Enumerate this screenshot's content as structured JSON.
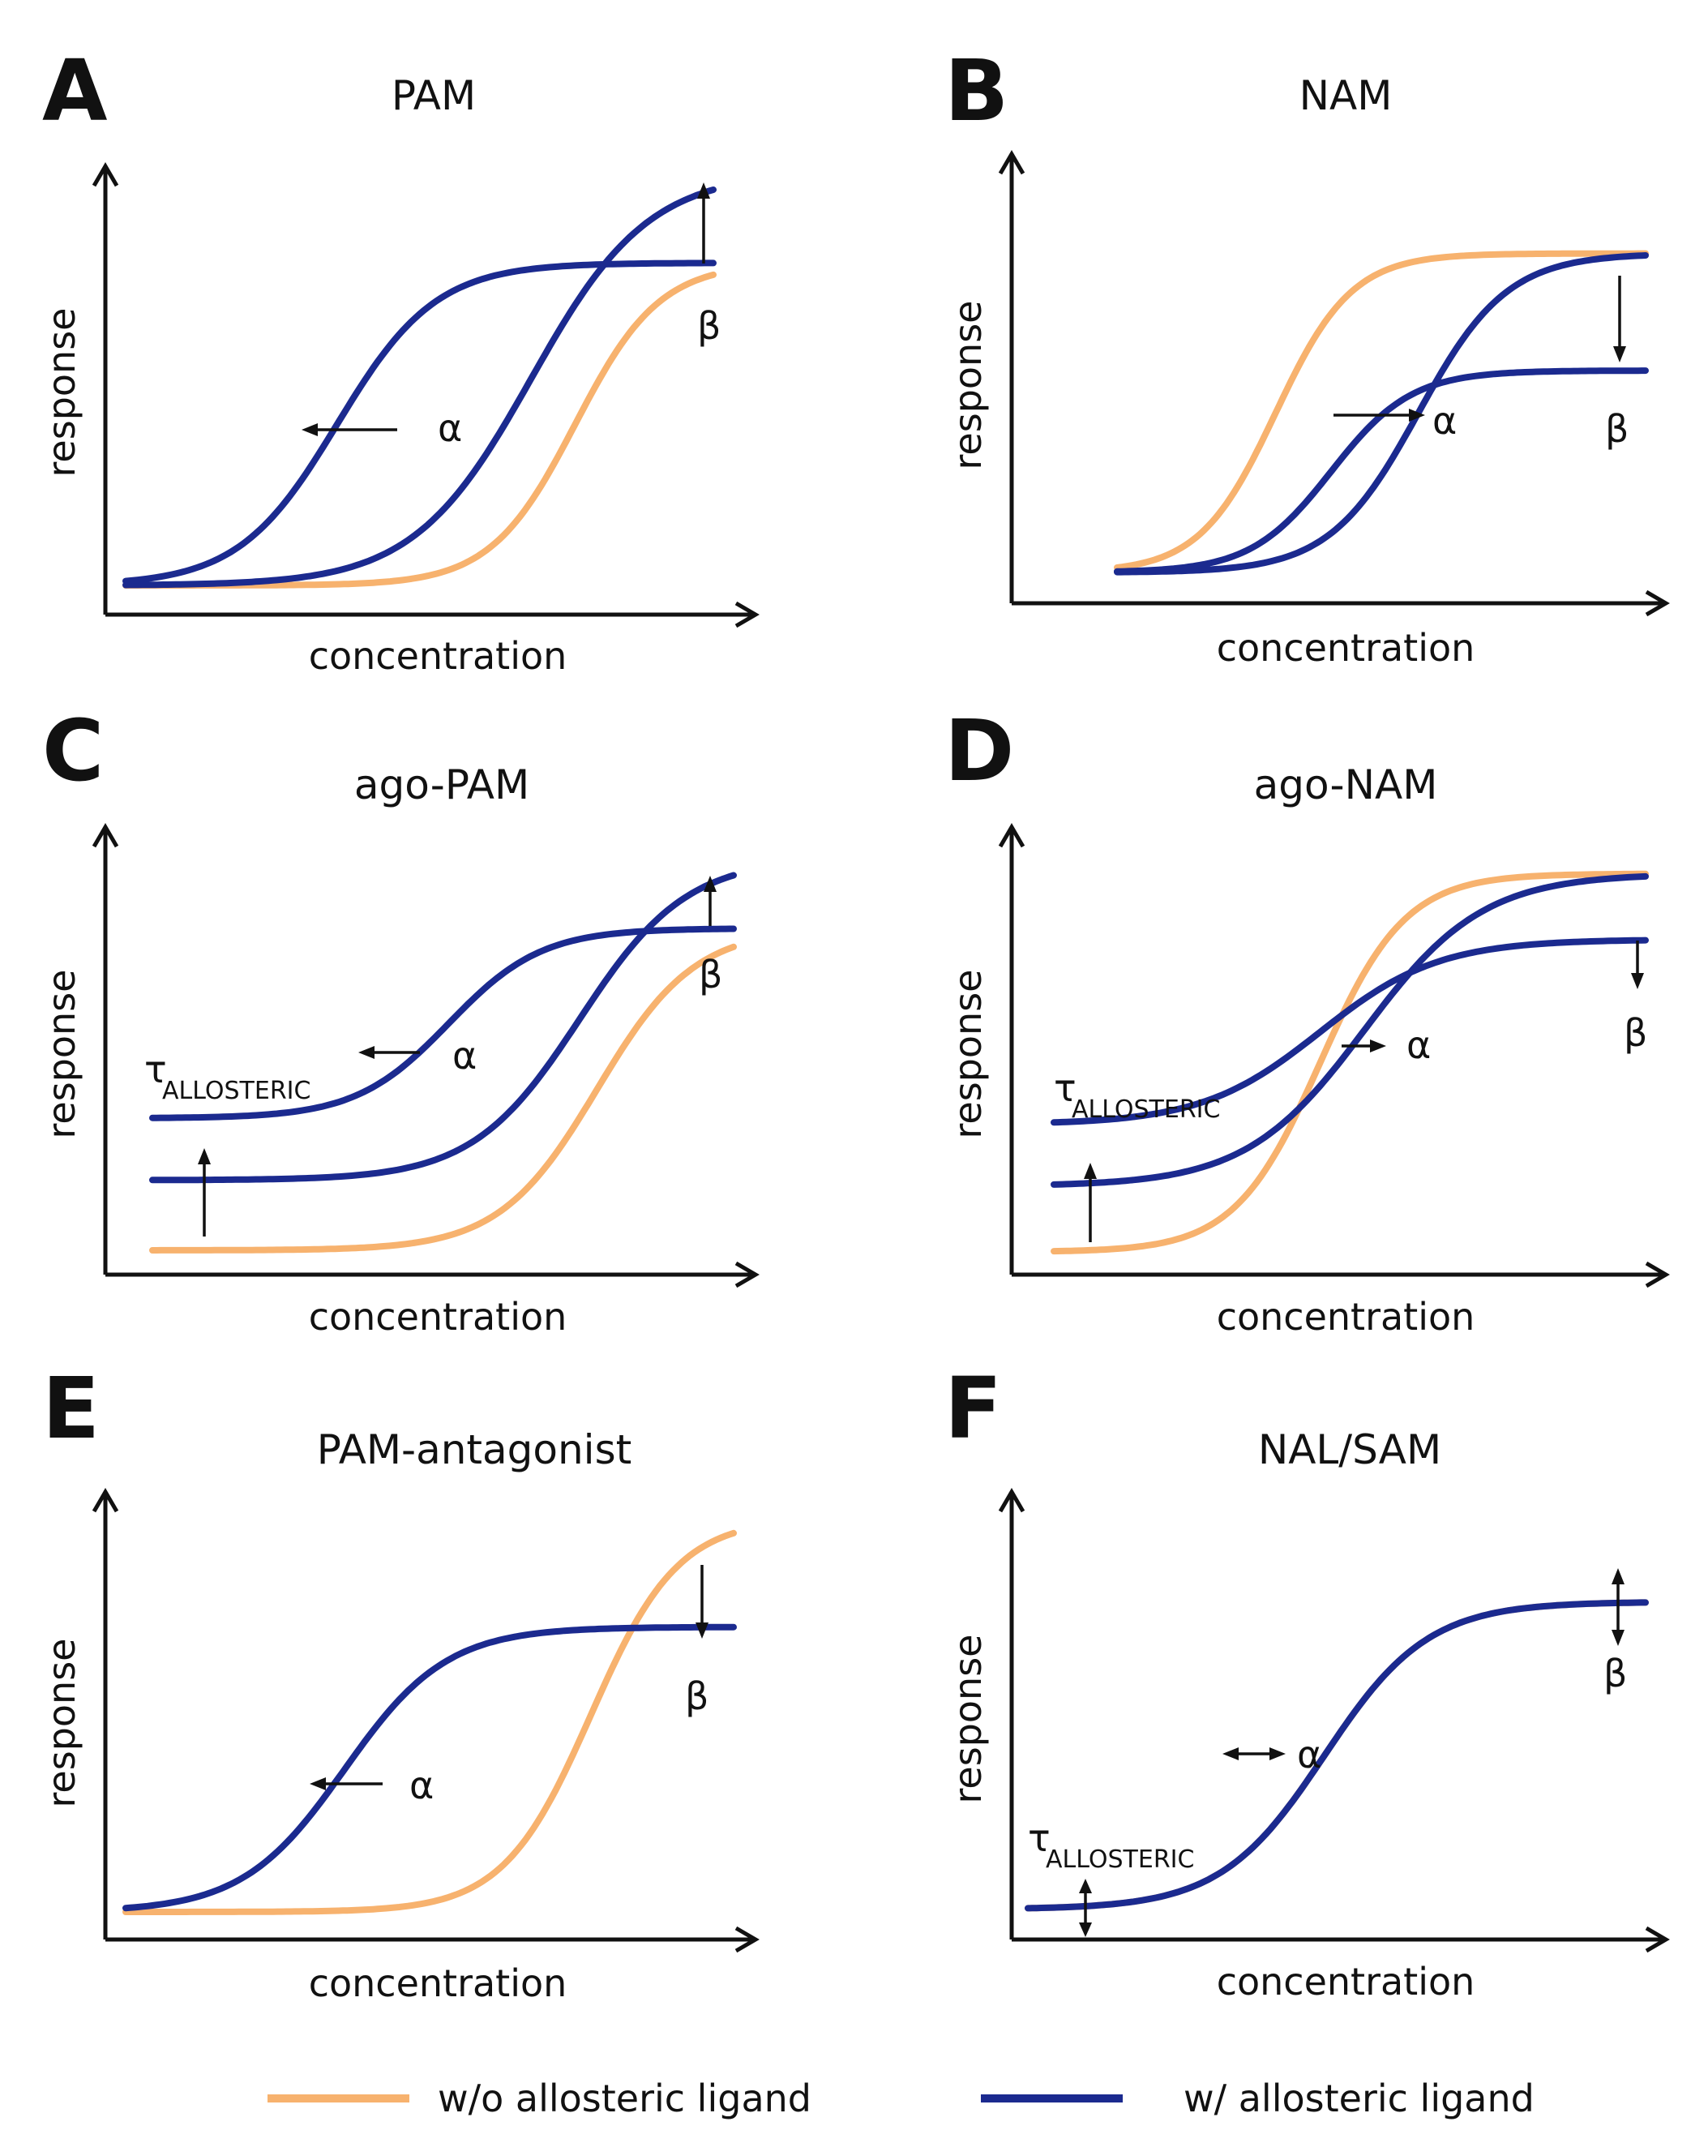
{
  "colors": {
    "without": "#F7B26E",
    "with": "#1B2A8F",
    "axis": "#111111"
  },
  "axis_labels": {
    "x": "concentration",
    "y": "response"
  },
  "panels": [
    {
      "letter": "A",
      "title": "PAM",
      "symbols": {
        "alpha": "α",
        "beta": "β"
      },
      "curves": [
        {
          "series": "without",
          "points": [
            [
              -1,
              0.0
            ],
            [
              2.55,
              0.78
            ],
            [
              10.3,
              0.78
            ]
          ]
        },
        {
          "series": "with",
          "points": [
            [
              -1,
              0.0
            ],
            [
              2.3,
              1.0
            ],
            [
              10.3,
              1.0
            ]
          ]
        },
        {
          "series": "with",
          "points": [
            [
              -1,
              0.0
            ],
            [
              1.2,
              0.78
            ],
            [
              10.3,
              0.78
            ]
          ]
        }
      ]
    },
    {
      "letter": "B",
      "title": "NAM",
      "symbols": {
        "alpha": "α",
        "beta": "β"
      },
      "curves": [
        {
          "series": "without",
          "points": [
            [
              -1,
              0.02
            ],
            [
              1.0,
              0.81
            ],
            [
              10.3,
              0.81
            ]
          ]
        },
        {
          "series": "with",
          "points": [
            [
              -1,
              0.02
            ],
            [
              1.9,
              0.81
            ],
            [
              10.3,
              0.81
            ]
          ]
        },
        {
          "series": "with",
          "points": [
            [
              -1,
              0.02
            ],
            [
              1.35,
              0.52
            ],
            [
              10.3,
              0.52
            ]
          ]
        }
      ]
    },
    {
      "letter": "C",
      "title": "ago-PAM",
      "symbols": {
        "alpha": "α",
        "beta": "β",
        "tau": "τ",
        "tau_sub": "ALLOSTERIC"
      },
      "curves": [
        {
          "series": "without",
          "points": [
            [
              -1,
              0.0
            ],
            [
              2.55,
              0.78
            ],
            [
              10.3,
              0.78
            ]
          ]
        },
        {
          "series": "with",
          "points": [
            [
              -1,
              0.17
            ],
            [
              2.45,
              0.95
            ],
            [
              10.3,
              0.95
            ]
          ]
        },
        {
          "series": "with",
          "points": [
            [
              -1,
              0.32
            ],
            [
              1.7,
              0.78
            ],
            [
              10.3,
              0.78
            ]
          ]
        }
      ]
    },
    {
      "letter": "D",
      "title": "ago-NAM",
      "symbols": {
        "alpha": "α",
        "beta": "β",
        "tau": "τ",
        "tau_sub": "ALLOSTERIC"
      },
      "curves": [
        {
          "series": "without",
          "points": [
            [
              -1,
              0.0
            ],
            [
              1.5,
              0.92
            ],
            [
              10.3,
              0.92
            ]
          ]
        },
        {
          "series": "with",
          "points": [
            [
              -1,
              0.16
            ],
            [
              1.75,
              0.92
            ],
            [
              10.3,
              0.92
            ]
          ]
        },
        {
          "series": "with",
          "points": [
            [
              -1,
              0.31
            ],
            [
              1.5,
              0.76
            ],
            [
              10.3,
              0.76
            ]
          ]
        }
      ]
    },
    {
      "letter": "E",
      "title": "PAM-antagonist",
      "symbols": {
        "alpha": "α",
        "beta": "β"
      },
      "curves": [
        {
          "series": "without",
          "points": [
            [
              -1,
              0.0
            ],
            [
              2.55,
              0.98
            ],
            [
              10.3,
              0.98
            ]
          ]
        },
        {
          "series": "with",
          "points": [
            [
              -1,
              0.0
            ],
            [
              1.2,
              0.71
            ],
            [
              10.3,
              0.71
            ]
          ]
        }
      ]
    },
    {
      "letter": "F",
      "title": "NAL/SAM",
      "symbols": {
        "alpha": "α",
        "beta": "β",
        "tau": "τ",
        "tau_sub": "ALLOSTERIC"
      },
      "curves": [
        {
          "series": "without",
          "points": [
            [
              -1,
              0.03
            ],
            [
              1.6,
              0.95
            ],
            [
              10.3,
              0.95
            ]
          ]
        },
        {
          "series": "with",
          "points": [
            [
              -1,
              0.03
            ],
            [
              1.6,
              0.95
            ],
            [
              10.3,
              0.95
            ]
          ]
        }
      ]
    }
  ],
  "legend": [
    {
      "series": "without",
      "label": "w/o allosteric ligand"
    },
    {
      "series": "with",
      "label": "w/ allosteric ligand"
    }
  ]
}
